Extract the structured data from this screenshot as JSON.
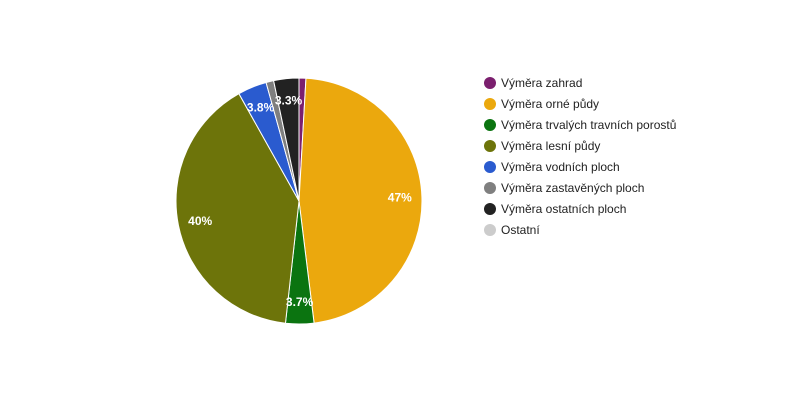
{
  "chart_data": {
    "type": "pie",
    "categories": [
      "Výměra zahrad",
      "Výměra orné půdy",
      "Výměra trvalých travních porostů",
      "Výměra lesní půdy",
      "Výměra vodních ploch",
      "Výměra zastavěných ploch",
      "Výměra ostatních ploch",
      "Ostatní"
    ],
    "values": [
      0.9,
      47.0,
      3.7,
      40.0,
      3.8,
      1.0,
      3.3,
      0.0
    ],
    "data_labels": [
      "",
      "47%",
      "3.7%",
      "40%",
      "3.8%",
      "",
      "3.3%",
      ""
    ],
    "colors": [
      "#7b1f6e",
      "#eba80d",
      "#0b7410",
      "#6d740a",
      "#2a5bcf",
      "#7f7f7f",
      "#222222",
      "#cccccc"
    ],
    "legend_position": "right"
  }
}
